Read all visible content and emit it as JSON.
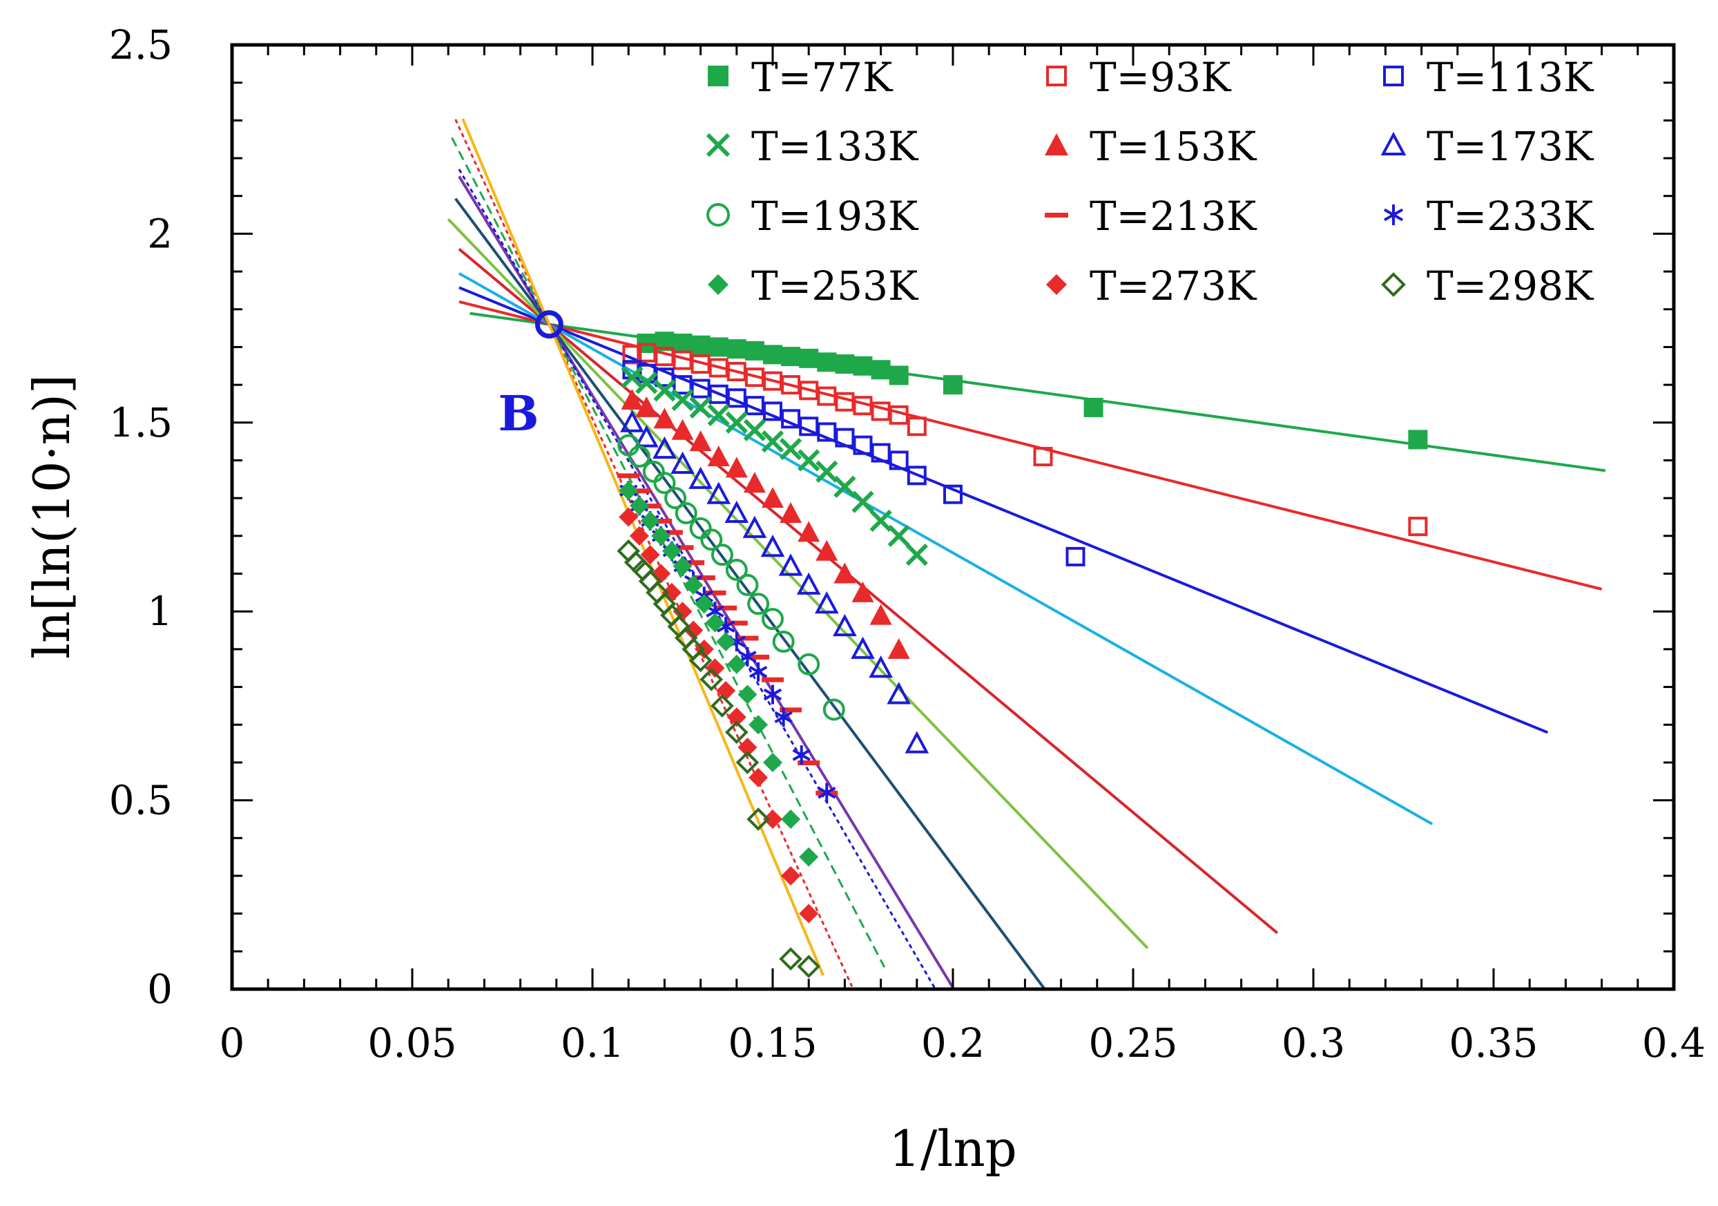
{
  "chart_data": {
    "type": "scatter",
    "title": "",
    "xlabel": "1/lnp",
    "ylabel": "ln[ln(10·n)]",
    "xlim": [
      0,
      0.4
    ],
    "ylim": [
      0,
      2.5
    ],
    "x_ticks": [
      0,
      0.05,
      0.1,
      0.15,
      0.2,
      0.25,
      0.3,
      0.35,
      0.4
    ],
    "x_tick_labels": [
      "0",
      "0.05",
      "0.1",
      "0.15",
      "0.2",
      "0.25",
      "0.3",
      "0.35",
      "0.4"
    ],
    "y_ticks": [
      0,
      0.5,
      1,
      1.5,
      2,
      2.5
    ],
    "y_tick_labels": [
      "0",
      "0.5",
      "1",
      "1.5",
      "2",
      "2.5"
    ],
    "grid": false,
    "legend_position": "top-right",
    "pivot": {
      "x": 0.088,
      "y": 1.76,
      "label": "B",
      "color": "#1a1adc"
    },
    "series": [
      {
        "name": "T=77K",
        "color": "#1fa84a",
        "marker": "square-filled",
        "line_color": "#1fa84a",
        "line_style": "solid",
        "line_x": [
          0.066,
          0.381
        ],
        "x": [
          0.115,
          0.12,
          0.125,
          0.13,
          0.135,
          0.14,
          0.145,
          0.15,
          0.155,
          0.16,
          0.165,
          0.17,
          0.175,
          0.18,
          0.185,
          0.2,
          0.239,
          0.329
        ],
        "y": [
          1.71,
          1.715,
          1.71,
          1.705,
          1.7,
          1.695,
          1.69,
          1.68,
          1.675,
          1.67,
          1.66,
          1.655,
          1.65,
          1.64,
          1.625,
          1.6,
          1.54,
          1.455
        ]
      },
      {
        "name": "T=93K",
        "color": "#e82a2a",
        "marker": "square-open",
        "line_color": "#e82a2a",
        "line_style": "solid",
        "line_x": [
          0.063,
          0.38
        ],
        "x": [
          0.111,
          0.115,
          0.12,
          0.125,
          0.13,
          0.135,
          0.14,
          0.145,
          0.15,
          0.155,
          0.16,
          0.165,
          0.17,
          0.175,
          0.18,
          0.185,
          0.19,
          0.225,
          0.329
        ],
        "y": [
          1.68,
          1.685,
          1.675,
          1.665,
          1.655,
          1.645,
          1.635,
          1.62,
          1.61,
          1.6,
          1.585,
          1.57,
          1.555,
          1.545,
          1.53,
          1.52,
          1.49,
          1.41,
          1.225
        ]
      },
      {
        "name": "T=113K",
        "color": "#1a1adc",
        "marker": "square-open",
        "line_color": "#1a1adc",
        "line_style": "solid",
        "line_x": [
          0.063,
          0.365
        ],
        "x": [
          0.111,
          0.115,
          0.12,
          0.125,
          0.13,
          0.135,
          0.14,
          0.145,
          0.15,
          0.155,
          0.16,
          0.165,
          0.17,
          0.175,
          0.18,
          0.185,
          0.19,
          0.2,
          0.234
        ],
        "y": [
          1.64,
          1.63,
          1.62,
          1.6,
          1.59,
          1.575,
          1.565,
          1.545,
          1.53,
          1.51,
          1.49,
          1.475,
          1.46,
          1.44,
          1.42,
          1.4,
          1.36,
          1.31,
          1.145
        ]
      },
      {
        "name": "T=133K",
        "color": "#1fa84a",
        "marker": "cross",
        "line_color": "#1ab0e6",
        "line_style": "solid",
        "line_x": [
          0.063,
          0.333
        ],
        "x": [
          0.111,
          0.115,
          0.12,
          0.125,
          0.13,
          0.135,
          0.14,
          0.145,
          0.15,
          0.155,
          0.16,
          0.165,
          0.17,
          0.175,
          0.18,
          0.185,
          0.19
        ],
        "y": [
          1.62,
          1.605,
          1.585,
          1.56,
          1.54,
          1.52,
          1.5,
          1.48,
          1.45,
          1.43,
          1.4,
          1.37,
          1.33,
          1.29,
          1.24,
          1.2,
          1.15
        ]
      },
      {
        "name": "T=153K",
        "color": "#e82a2a",
        "marker": "triangle-filled",
        "line_color": "#d8262a",
        "line_style": "solid",
        "line_x": [
          0.063,
          0.29
        ],
        "x": [
          0.111,
          0.115,
          0.12,
          0.125,
          0.13,
          0.135,
          0.14,
          0.145,
          0.15,
          0.155,
          0.16,
          0.165,
          0.17,
          0.175,
          0.18,
          0.185
        ],
        "y": [
          1.56,
          1.54,
          1.51,
          1.48,
          1.45,
          1.41,
          1.38,
          1.34,
          1.3,
          1.26,
          1.21,
          1.16,
          1.1,
          1.05,
          0.99,
          0.9
        ]
      },
      {
        "name": "T=173K",
        "color": "#1a1adc",
        "marker": "triangle-open",
        "line_color": "#7dc242",
        "line_style": "solid",
        "line_x": [
          0.06,
          0.254
        ],
        "x": [
          0.111,
          0.115,
          0.12,
          0.125,
          0.13,
          0.135,
          0.14,
          0.145,
          0.15,
          0.155,
          0.16,
          0.165,
          0.17,
          0.175,
          0.18,
          0.185,
          0.19
        ],
        "y": [
          1.5,
          1.46,
          1.43,
          1.39,
          1.35,
          1.31,
          1.26,
          1.22,
          1.17,
          1.12,
          1.07,
          1.02,
          0.96,
          0.9,
          0.85,
          0.78,
          0.65
        ]
      },
      {
        "name": "T=193K",
        "color": "#1fa84a",
        "marker": "circle-open",
        "line_color": "#1d4f73",
        "line_style": "solid",
        "line_x": [
          0.062,
          0.234
        ],
        "x": [
          0.11,
          0.113,
          0.117,
          0.12,
          0.123,
          0.126,
          0.13,
          0.133,
          0.136,
          0.14,
          0.143,
          0.146,
          0.15,
          0.153,
          0.16,
          0.167
        ],
        "y": [
          1.44,
          1.41,
          1.37,
          1.34,
          1.3,
          1.26,
          1.22,
          1.19,
          1.15,
          1.11,
          1.07,
          1.02,
          0.98,
          0.92,
          0.86,
          0.74
        ]
      },
      {
        "name": "T=213K",
        "color": "#e82a2a",
        "marker": "dash",
        "line_color": "#7a37a8",
        "line_style": "solid",
        "line_x": [
          0.063,
          0.208
        ],
        "x": [
          0.11,
          0.113,
          0.116,
          0.119,
          0.122,
          0.125,
          0.128,
          0.131,
          0.134,
          0.137,
          0.14,
          0.143,
          0.146,
          0.15,
          0.155,
          0.16,
          0.165
        ],
        "y": [
          1.36,
          1.32,
          1.28,
          1.24,
          1.21,
          1.17,
          1.13,
          1.09,
          1.05,
          1.01,
          0.97,
          0.93,
          0.88,
          0.82,
          0.74,
          0.6,
          0.52
        ]
      },
      {
        "name": "T=233K",
        "color": "#1a1adc",
        "marker": "asterisk",
        "line_color": "#1a1adc",
        "line_style": "dotted",
        "line_x": [
          0.063,
          0.198
        ],
        "x": [
          0.11,
          0.113,
          0.116,
          0.119,
          0.122,
          0.125,
          0.128,
          0.131,
          0.134,
          0.137,
          0.14,
          0.143,
          0.146,
          0.15,
          0.153,
          0.158,
          0.165
        ],
        "y": [
          1.32,
          1.28,
          1.24,
          1.2,
          1.16,
          1.12,
          1.08,
          1.04,
          1.0,
          0.96,
          0.92,
          0.88,
          0.84,
          0.78,
          0.72,
          0.62,
          0.52
        ]
      },
      {
        "name": "T=253K",
        "color": "#1fa84a",
        "marker": "diamond-filled",
        "line_color": "#1fa84a",
        "line_style": "dashed",
        "line_x": [
          0.061,
          0.181
        ],
        "x": [
          0.11,
          0.113,
          0.116,
          0.119,
          0.122,
          0.125,
          0.128,
          0.131,
          0.134,
          0.137,
          0.14,
          0.143,
          0.146,
          0.15,
          0.155,
          0.16
        ],
        "y": [
          1.32,
          1.28,
          1.24,
          1.2,
          1.16,
          1.12,
          1.07,
          1.02,
          0.97,
          0.92,
          0.86,
          0.78,
          0.7,
          0.6,
          0.45,
          0.35
        ]
      },
      {
        "name": "T=273K",
        "color": "#e82a2a",
        "marker": "diamond-filled",
        "line_color": "#e82a2a",
        "line_style": "dotted",
        "line_x": [
          0.062,
          0.172
        ],
        "x": [
          0.11,
          0.113,
          0.116,
          0.119,
          0.122,
          0.125,
          0.128,
          0.131,
          0.134,
          0.137,
          0.14,
          0.143,
          0.146,
          0.15,
          0.155,
          0.16
        ],
        "y": [
          1.25,
          1.2,
          1.15,
          1.1,
          1.05,
          1.0,
          0.95,
          0.9,
          0.85,
          0.79,
          0.72,
          0.64,
          0.56,
          0.45,
          0.3,
          0.2
        ]
      },
      {
        "name": "T=298K",
        "color": "#2f6b1e",
        "marker": "diamond-open",
        "line_color": "#f5b71a",
        "line_style": "solid",
        "line_x": [
          0.064,
          0.164
        ],
        "x": [
          0.11,
          0.112,
          0.114,
          0.116,
          0.118,
          0.12,
          0.122,
          0.124,
          0.126,
          0.128,
          0.13,
          0.133,
          0.136,
          0.14,
          0.143,
          0.146,
          0.155,
          0.16
        ],
        "y": [
          1.16,
          1.13,
          1.11,
          1.08,
          1.05,
          1.02,
          0.99,
          0.96,
          0.93,
          0.9,
          0.87,
          0.82,
          0.75,
          0.68,
          0.6,
          0.45,
          0.08,
          0.06
        ]
      }
    ]
  }
}
